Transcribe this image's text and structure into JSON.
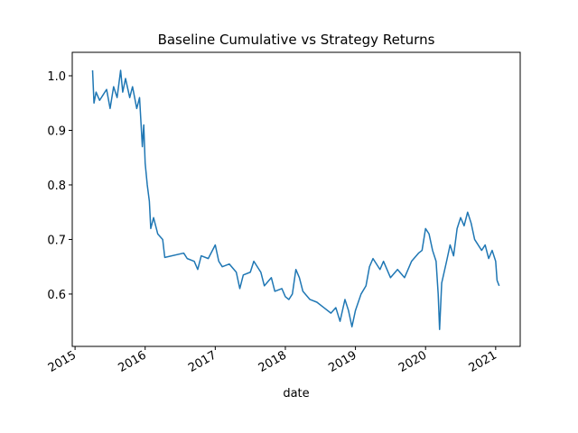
{
  "chart_data": {
    "type": "line",
    "title": "Baseline Cumulative vs Strategy Returns",
    "xlabel": "date",
    "x": [
      2015.25,
      2015.27,
      2015.3,
      2015.35,
      2015.4,
      2015.45,
      2015.5,
      2015.55,
      2015.6,
      2015.65,
      2015.68,
      2015.72,
      2015.78,
      2015.82,
      2015.88,
      2015.92,
      2015.96,
      2015.98,
      2016.0,
      2016.03,
      2016.06,
      2016.08,
      2016.12,
      2016.18,
      2016.25,
      2016.28,
      2016.55,
      2016.6,
      2016.7,
      2016.75,
      2016.8,
      2016.9,
      2017.0,
      2017.05,
      2017.1,
      2017.2,
      2017.3,
      2017.35,
      2017.4,
      2017.5,
      2017.55,
      2017.65,
      2017.7,
      2017.8,
      2017.85,
      2017.95,
      2018.0,
      2018.05,
      2018.1,
      2018.15,
      2018.2,
      2018.25,
      2018.35,
      2018.45,
      2018.55,
      2018.65,
      2018.72,
      2018.78,
      2018.85,
      2018.9,
      2018.95,
      2019.0,
      2019.08,
      2019.15,
      2019.2,
      2019.25,
      2019.35,
      2019.4,
      2019.5,
      2019.6,
      2019.7,
      2019.8,
      2019.9,
      2019.95,
      2020.0,
      2020.05,
      2020.1,
      2020.15,
      2020.18,
      2020.2,
      2020.23,
      2020.3,
      2020.35,
      2020.4,
      2020.45,
      2020.5,
      2020.55,
      2020.6,
      2020.65,
      2020.7,
      2020.8,
      2020.85,
      2020.9,
      2020.95,
      2021.0,
      2021.02,
      2021.05
    ],
    "series": [
      {
        "color": "#1f77b4",
        "values": [
          1.01,
          0.95,
          0.97,
          0.955,
          0.965,
          0.975,
          0.94,
          0.98,
          0.96,
          1.01,
          0.97,
          0.995,
          0.96,
          0.98,
          0.94,
          0.96,
          0.87,
          0.91,
          0.84,
          0.8,
          0.77,
          0.72,
          0.74,
          0.71,
          0.7,
          0.667,
          0.675,
          0.665,
          0.66,
          0.645,
          0.67,
          0.665,
          0.69,
          0.66,
          0.65,
          0.655,
          0.64,
          0.61,
          0.635,
          0.64,
          0.66,
          0.64,
          0.615,
          0.63,
          0.605,
          0.61,
          0.595,
          0.59,
          0.6,
          0.645,
          0.63,
          0.605,
          0.59,
          0.585,
          0.575,
          0.565,
          0.575,
          0.55,
          0.59,
          0.57,
          0.54,
          0.57,
          0.6,
          0.615,
          0.65,
          0.665,
          0.645,
          0.66,
          0.63,
          0.645,
          0.63,
          0.66,
          0.675,
          0.68,
          0.72,
          0.71,
          0.68,
          0.66,
          0.6,
          0.535,
          0.62,
          0.66,
          0.69,
          0.67,
          0.72,
          0.74,
          0.725,
          0.75,
          0.73,
          0.7,
          0.68,
          0.69,
          0.665,
          0.68,
          0.66,
          0.625,
          0.615
        ]
      }
    ],
    "xlim": [
      2014.96,
      2021.35
    ],
    "xticks": [
      2015,
      2016,
      2017,
      2018,
      2019,
      2020,
      2021
    ],
    "ylim": [
      0.504,
      1.043
    ],
    "yticks": [
      {
        "value": 0.6,
        "label": "0.6"
      },
      {
        "value": 0.7,
        "label": "0.7"
      },
      {
        "value": 0.8,
        "label": "0.8"
      },
      {
        "value": 0.9,
        "label": "0.9"
      },
      {
        "value": 1.0,
        "label": "1.0"
      }
    ],
    "grid": false
  }
}
